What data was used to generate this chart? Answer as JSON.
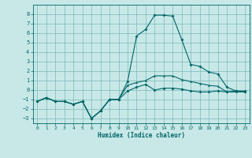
{
  "xlabel": "Humidex (Indice chaleur)",
  "bg_color": "#c8e8e8",
  "grid_color": "#7ab8b8",
  "line_color": "#006666",
  "xlim": [
    -0.5,
    23.5
  ],
  "ylim": [
    -3.5,
    9.0
  ],
  "yticks": [
    -3,
    -2,
    -1,
    0,
    1,
    2,
    3,
    4,
    5,
    6,
    7,
    8
  ],
  "xticks": [
    0,
    1,
    2,
    3,
    4,
    5,
    6,
    7,
    8,
    9,
    10,
    11,
    12,
    13,
    14,
    15,
    16,
    17,
    18,
    19,
    20,
    21,
    22,
    23
  ],
  "series1_x": [
    0,
    1,
    2,
    3,
    4,
    5,
    6,
    7,
    8,
    9,
    10,
    11,
    12,
    13,
    14,
    15,
    16,
    17,
    18,
    19,
    20,
    21,
    22,
    23
  ],
  "series1_y": [
    -1.2,
    -0.8,
    -1.2,
    -1.2,
    -1.5,
    -1.2,
    -3.0,
    -2.2,
    -1.0,
    -1.0,
    -0.1,
    0.3,
    0.6,
    0.0,
    0.2,
    0.2,
    0.1,
    -0.1,
    -0.2,
    -0.2,
    -0.1,
    -0.2,
    -0.1,
    -0.1
  ],
  "series2_x": [
    0,
    1,
    2,
    3,
    4,
    5,
    6,
    7,
    8,
    9,
    10,
    11,
    12,
    13,
    14,
    15,
    16,
    17,
    18,
    19,
    20,
    21,
    22,
    23
  ],
  "series2_y": [
    -1.2,
    -0.8,
    -1.2,
    -1.2,
    -1.5,
    -1.2,
    -3.0,
    -2.2,
    -1.0,
    -1.0,
    0.9,
    5.7,
    6.4,
    7.9,
    7.9,
    7.8,
    5.3,
    2.7,
    2.5,
    1.9,
    1.7,
    0.3,
    -0.1,
    -0.2
  ],
  "series3_x": [
    0,
    1,
    2,
    3,
    4,
    5,
    6,
    7,
    8,
    9,
    10,
    11,
    12,
    13,
    14,
    15,
    16,
    17,
    18,
    19,
    20,
    21,
    22,
    23
  ],
  "series3_y": [
    -1.2,
    -0.8,
    -1.2,
    -1.2,
    -1.5,
    -1.2,
    -3.0,
    -2.2,
    -1.0,
    -1.0,
    0.5,
    0.8,
    1.0,
    1.5,
    1.5,
    1.5,
    1.1,
    0.9,
    0.7,
    0.5,
    0.4,
    -0.2,
    -0.2,
    -0.2
  ],
  "marker_size": 2,
  "line_width": 0.8
}
